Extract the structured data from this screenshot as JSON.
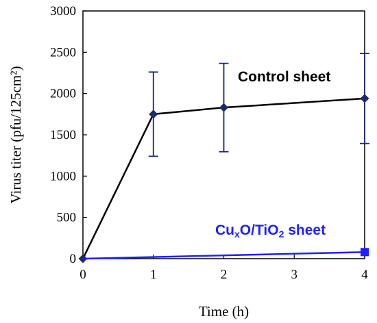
{
  "chart_data": {
    "type": "line",
    "xlabel": "Time (h)",
    "ylabel": "Virus titer (pfu/125cm²)",
    "xlim": [
      0,
      4
    ],
    "ylim": [
      0,
      3000
    ],
    "x_ticks": [
      0,
      1,
      2,
      3,
      4
    ],
    "y_ticks": [
      0,
      500,
      1000,
      1500,
      2000,
      2500,
      3000
    ],
    "grid": false,
    "series": [
      {
        "name": "Control sheet",
        "color": "#000000",
        "marker_color": "#1a2a6c",
        "marker": "diamond",
        "x": [
          0,
          1,
          2,
          4
        ],
        "y": [
          0,
          1750,
          1830,
          1940
        ],
        "error": [
          0,
          510,
          535,
          545
        ]
      },
      {
        "name": "CuxO/TiO2 sheet",
        "color": "#1f1fff",
        "marker_color": "#1f1fff",
        "marker": "square",
        "x": [
          0,
          4
        ],
        "y": [
          0,
          80
        ]
      }
    ]
  }
}
